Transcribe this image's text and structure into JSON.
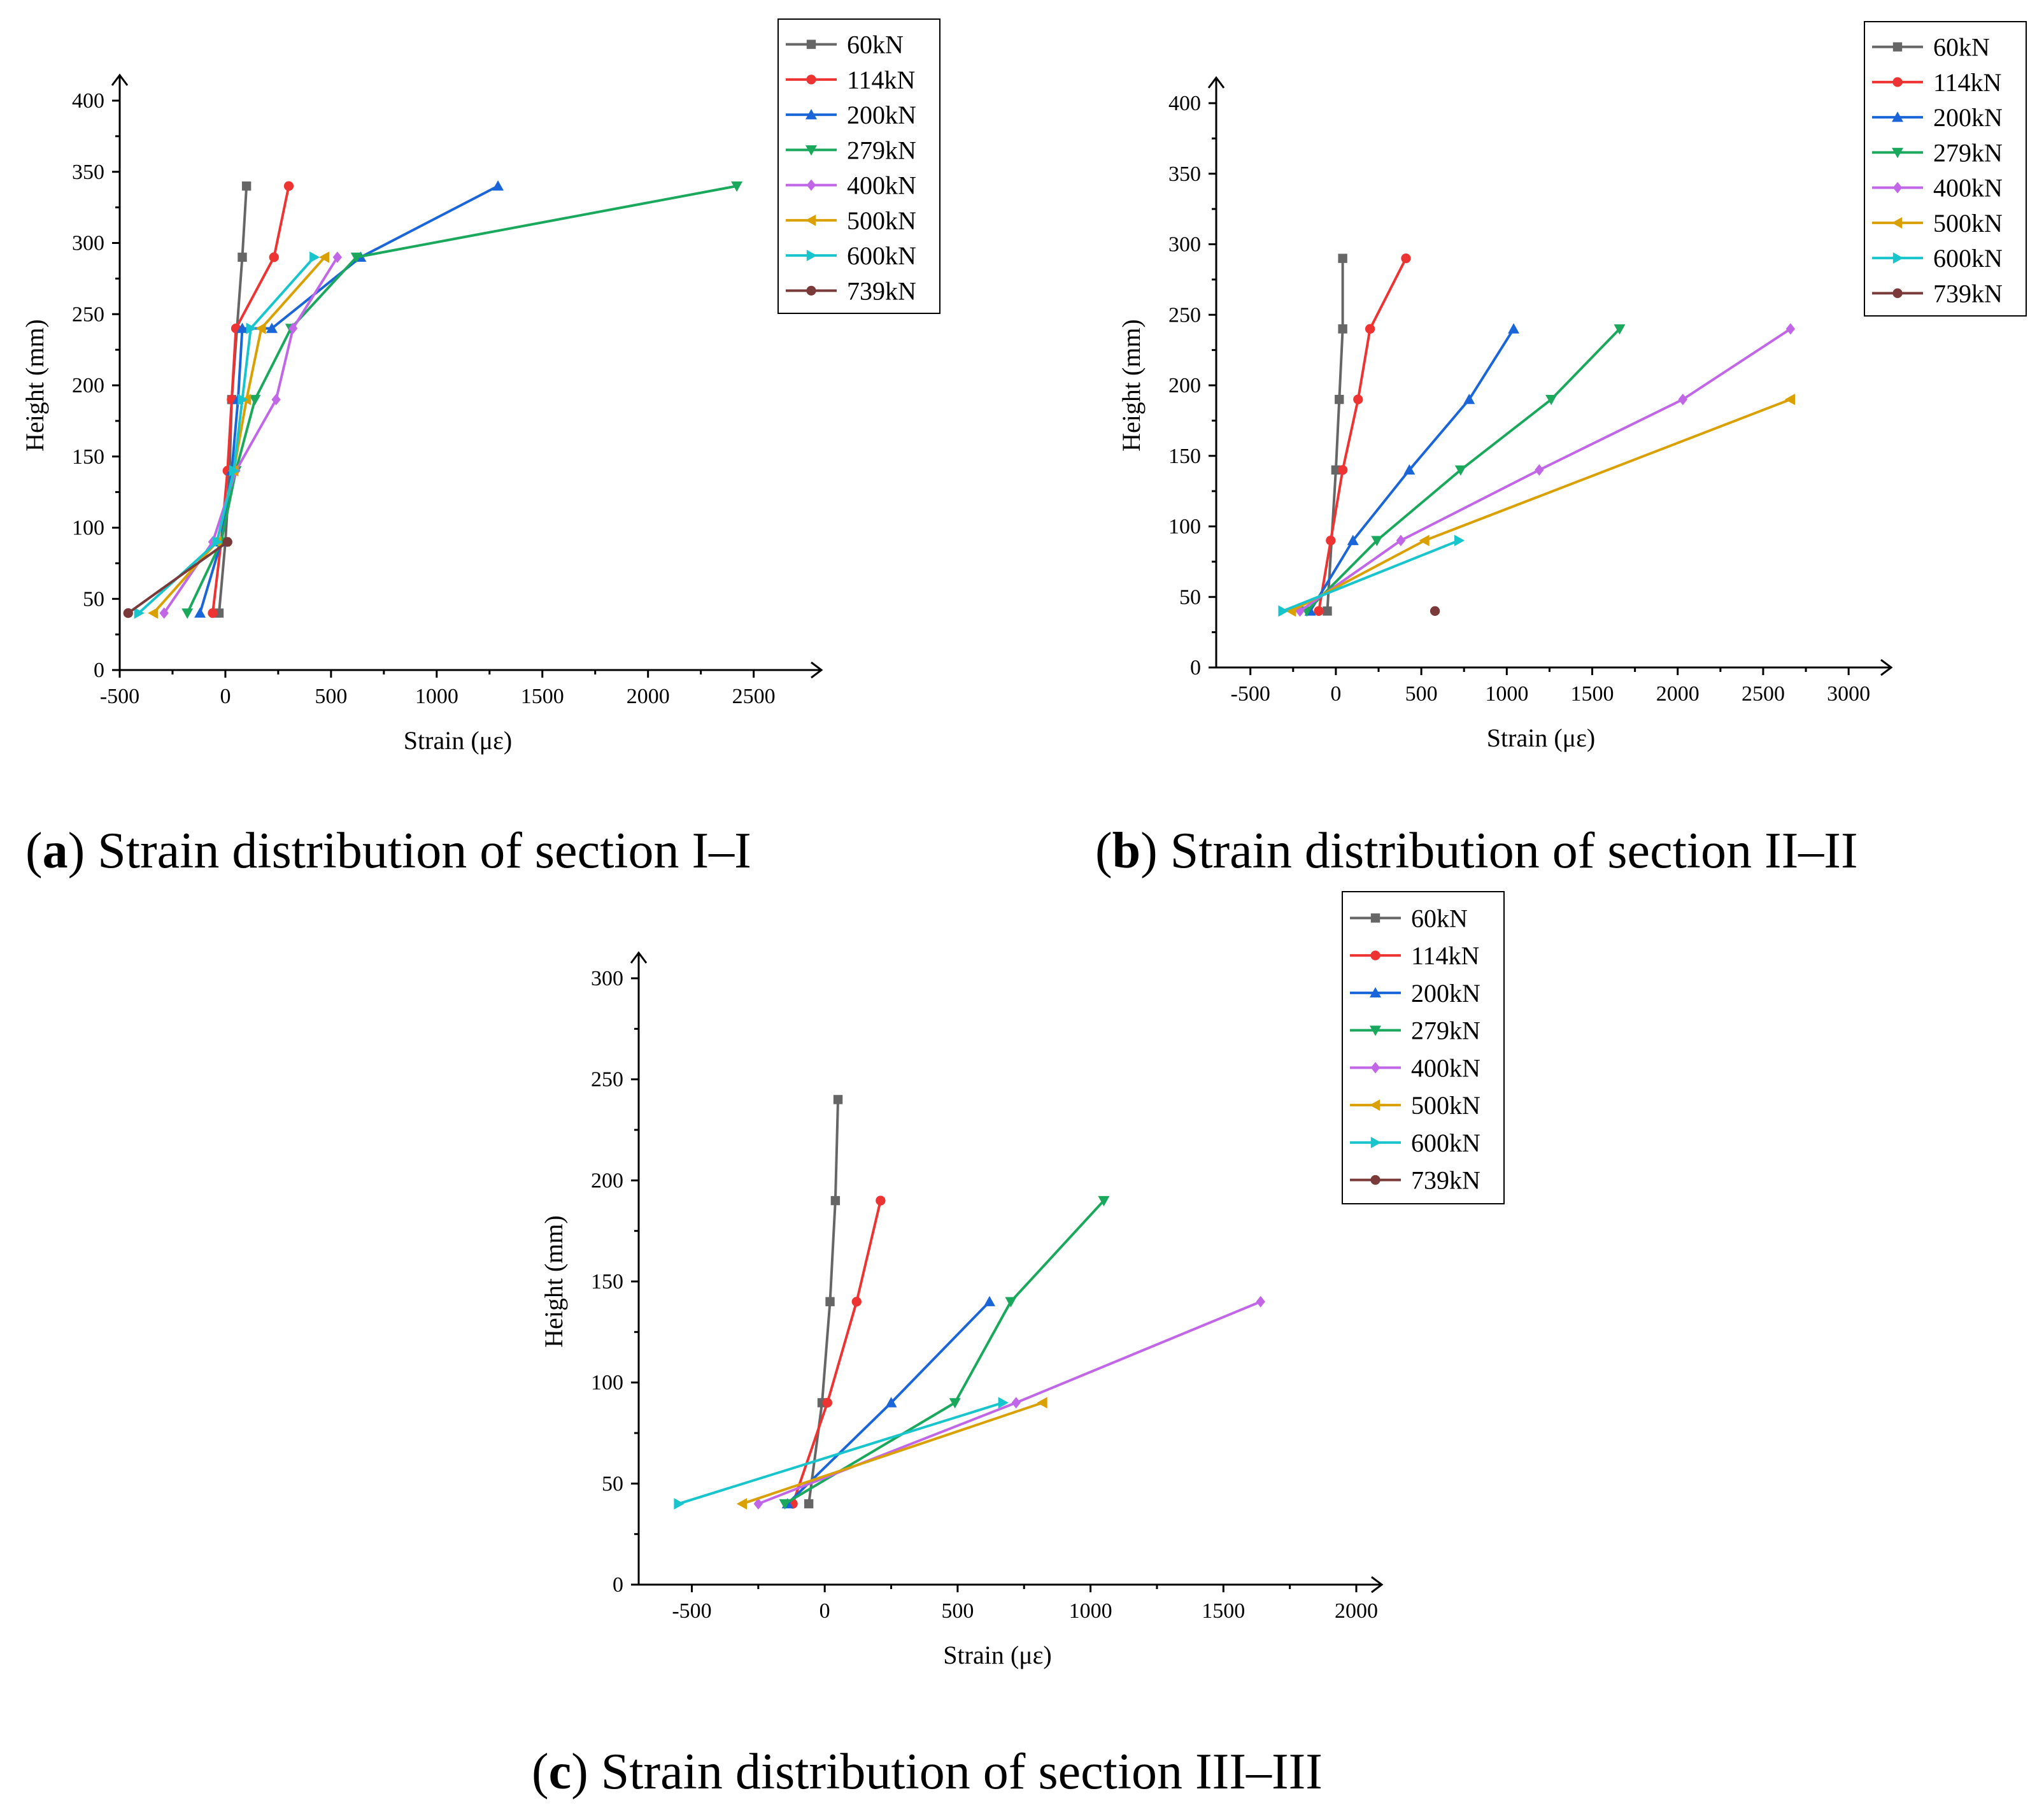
{
  "figure": {
    "series_styles": [
      {
        "name": "60kN",
        "color": "#666666",
        "marker": "square"
      },
      {
        "name": "114kN",
        "color": "#ee3333",
        "marker": "circle"
      },
      {
        "name": "200kN",
        "color": "#1a66d9",
        "marker": "triangle-up"
      },
      {
        "name": "279kN",
        "color": "#19a85c",
        "marker": "triangle-down"
      },
      {
        "name": "400kN",
        "color": "#c066e6",
        "marker": "diamond"
      },
      {
        "name": "500kN",
        "color": "#d9a000",
        "marker": "triangle-left"
      },
      {
        "name": "600kN",
        "color": "#19c5cc",
        "marker": "triangle-right"
      },
      {
        "name": "739kN",
        "color": "#7a3a3a",
        "marker": "circle"
      }
    ]
  },
  "chart_data": [
    {
      "id": "a",
      "type": "line",
      "caption": {
        "open": "(",
        "letter": "a",
        "close": ")",
        "text": " Strain distribution of section I–I"
      },
      "xlabel": "Strain (με)",
      "ylabel": "Height (mm)",
      "xlim": [
        -500,
        2700
      ],
      "ylim": [
        0,
        400
      ],
      "xticks": [
        "-500",
        "0",
        "500",
        "1000",
        "1500",
        "2000",
        "2500"
      ],
      "yticks": [
        "0",
        "50",
        "100",
        "150",
        "200",
        "250",
        "300",
        "350",
        "400"
      ],
      "series": [
        {
          "name": "60kN",
          "x": [
            -30,
            0,
            20,
            30,
            80,
            100
          ],
          "y": [
            40,
            90,
            140,
            190,
            290,
            340
          ]
        },
        {
          "name": "114kN",
          "x": [
            -60,
            -20,
            10,
            30,
            50,
            230,
            300
          ],
          "y": [
            40,
            90,
            140,
            190,
            240,
            290,
            340
          ]
        },
        {
          "name": "200kN",
          "x": [
            -120,
            -20,
            30,
            60,
            80,
            220,
            640,
            1290
          ],
          "y": [
            40,
            90,
            140,
            190,
            240,
            240,
            290,
            340
          ]
        },
        {
          "name": "279kN",
          "x": [
            -180,
            -20,
            50,
            140,
            310,
            620,
            2420
          ],
          "y": [
            40,
            90,
            140,
            190,
            240,
            290,
            340
          ]
        },
        {
          "name": "400kN",
          "x": [
            -290,
            -60,
            50,
            240,
            320,
            530
          ],
          "y": [
            40,
            90,
            140,
            190,
            240,
            290
          ]
        },
        {
          "name": "500kN",
          "x": [
            -340,
            -40,
            40,
            100,
            170,
            470
          ],
          "y": [
            40,
            90,
            140,
            190,
            240,
            290
          ]
        },
        {
          "name": "600kN",
          "x": [
            -410,
            -40,
            40,
            80,
            120,
            420
          ],
          "y": [
            40,
            90,
            140,
            190,
            240,
            290
          ]
        },
        {
          "name": "739kN",
          "x": [
            -460,
            10
          ],
          "y": [
            40,
            90
          ]
        }
      ]
    },
    {
      "id": "b",
      "type": "line",
      "caption": {
        "open": "(",
        "letter": "b",
        "close": ")",
        "text": " Strain distribution of section II–II"
      },
      "xlabel": "Strain (με)",
      "ylabel": "Height (mm)",
      "xlim": [
        -700,
        3100
      ],
      "ylim": [
        0,
        400
      ],
      "xticks": [
        "-500",
        "0",
        "500",
        "1000",
        "1500",
        "2000",
        "2500",
        "3000"
      ],
      "yticks": [
        "0",
        "50",
        "100",
        "150",
        "200",
        "250",
        "300",
        "350",
        "400"
      ],
      "series": [
        {
          "name": "60kN",
          "x": [
            -50,
            0,
            20,
            40,
            40
          ],
          "y": [
            40,
            140,
            190,
            240,
            290
          ]
        },
        {
          "name": "114kN",
          "x": [
            -100,
            -30,
            40,
            130,
            200,
            410
          ],
          "y": [
            40,
            90,
            140,
            190,
            240,
            290
          ]
        },
        {
          "name": "200kN",
          "x": [
            -150,
            100,
            430,
            780,
            1040
          ],
          "y": [
            40,
            90,
            140,
            190,
            240
          ]
        },
        {
          "name": "279kN",
          "x": [
            -170,
            240,
            730,
            1260,
            1660
          ],
          "y": [
            40,
            90,
            140,
            190,
            240
          ]
        },
        {
          "name": "400kN",
          "x": [
            -210,
            380,
            1190,
            2030,
            2660
          ],
          "y": [
            40,
            90,
            140,
            190,
            240
          ]
        },
        {
          "name": "500kN",
          "x": [
            -260,
            520,
            2660
          ],
          "y": [
            40,
            90,
            190
          ]
        },
        {
          "name": "600kN",
          "x": [
            -310,
            720
          ],
          "y": [
            40,
            90
          ]
        },
        {
          "name": "739kN",
          "x": [
            580
          ],
          "y": [
            40
          ]
        }
      ]
    },
    {
      "id": "c",
      "type": "line",
      "caption": {
        "open": "(",
        "letter": "c",
        "close": ")",
        "text": " Strain distribution of section III–III"
      },
      "xlabel": "Strain (με)",
      "ylabel": "Height (mm)",
      "xlim": [
        -700,
        2000
      ],
      "ylim": [
        0,
        300
      ],
      "xticks": [
        "-500",
        "0",
        "500",
        "1000",
        "1500",
        "2000"
      ],
      "yticks": [
        "0",
        "50",
        "100",
        "150",
        "200",
        "250",
        "300"
      ],
      "series": [
        {
          "name": "60kN",
          "x": [
            -60,
            -10,
            20,
            40,
            50
          ],
          "y": [
            40,
            90,
            140,
            190,
            240
          ]
        },
        {
          "name": "114kN",
          "x": [
            -120,
            10,
            120,
            210
          ],
          "y": [
            40,
            90,
            140,
            190
          ]
        },
        {
          "name": "200kN",
          "x": [
            -140,
            250,
            620
          ],
          "y": [
            40,
            90,
            140
          ]
        },
        {
          "name": "279kN",
          "x": [
            -150,
            490,
            700,
            1050
          ],
          "y": [
            40,
            90,
            140,
            190
          ]
        },
        {
          "name": "400kN",
          "x": [
            -250,
            720,
            1640
          ],
          "y": [
            40,
            90,
            140
          ]
        },
        {
          "name": "500kN",
          "x": [
            -310,
            820
          ],
          "y": [
            40,
            90
          ]
        },
        {
          "name": "600kN",
          "x": [
            -550,
            670
          ],
          "y": [
            40,
            90
          ]
        }
      ]
    }
  ]
}
